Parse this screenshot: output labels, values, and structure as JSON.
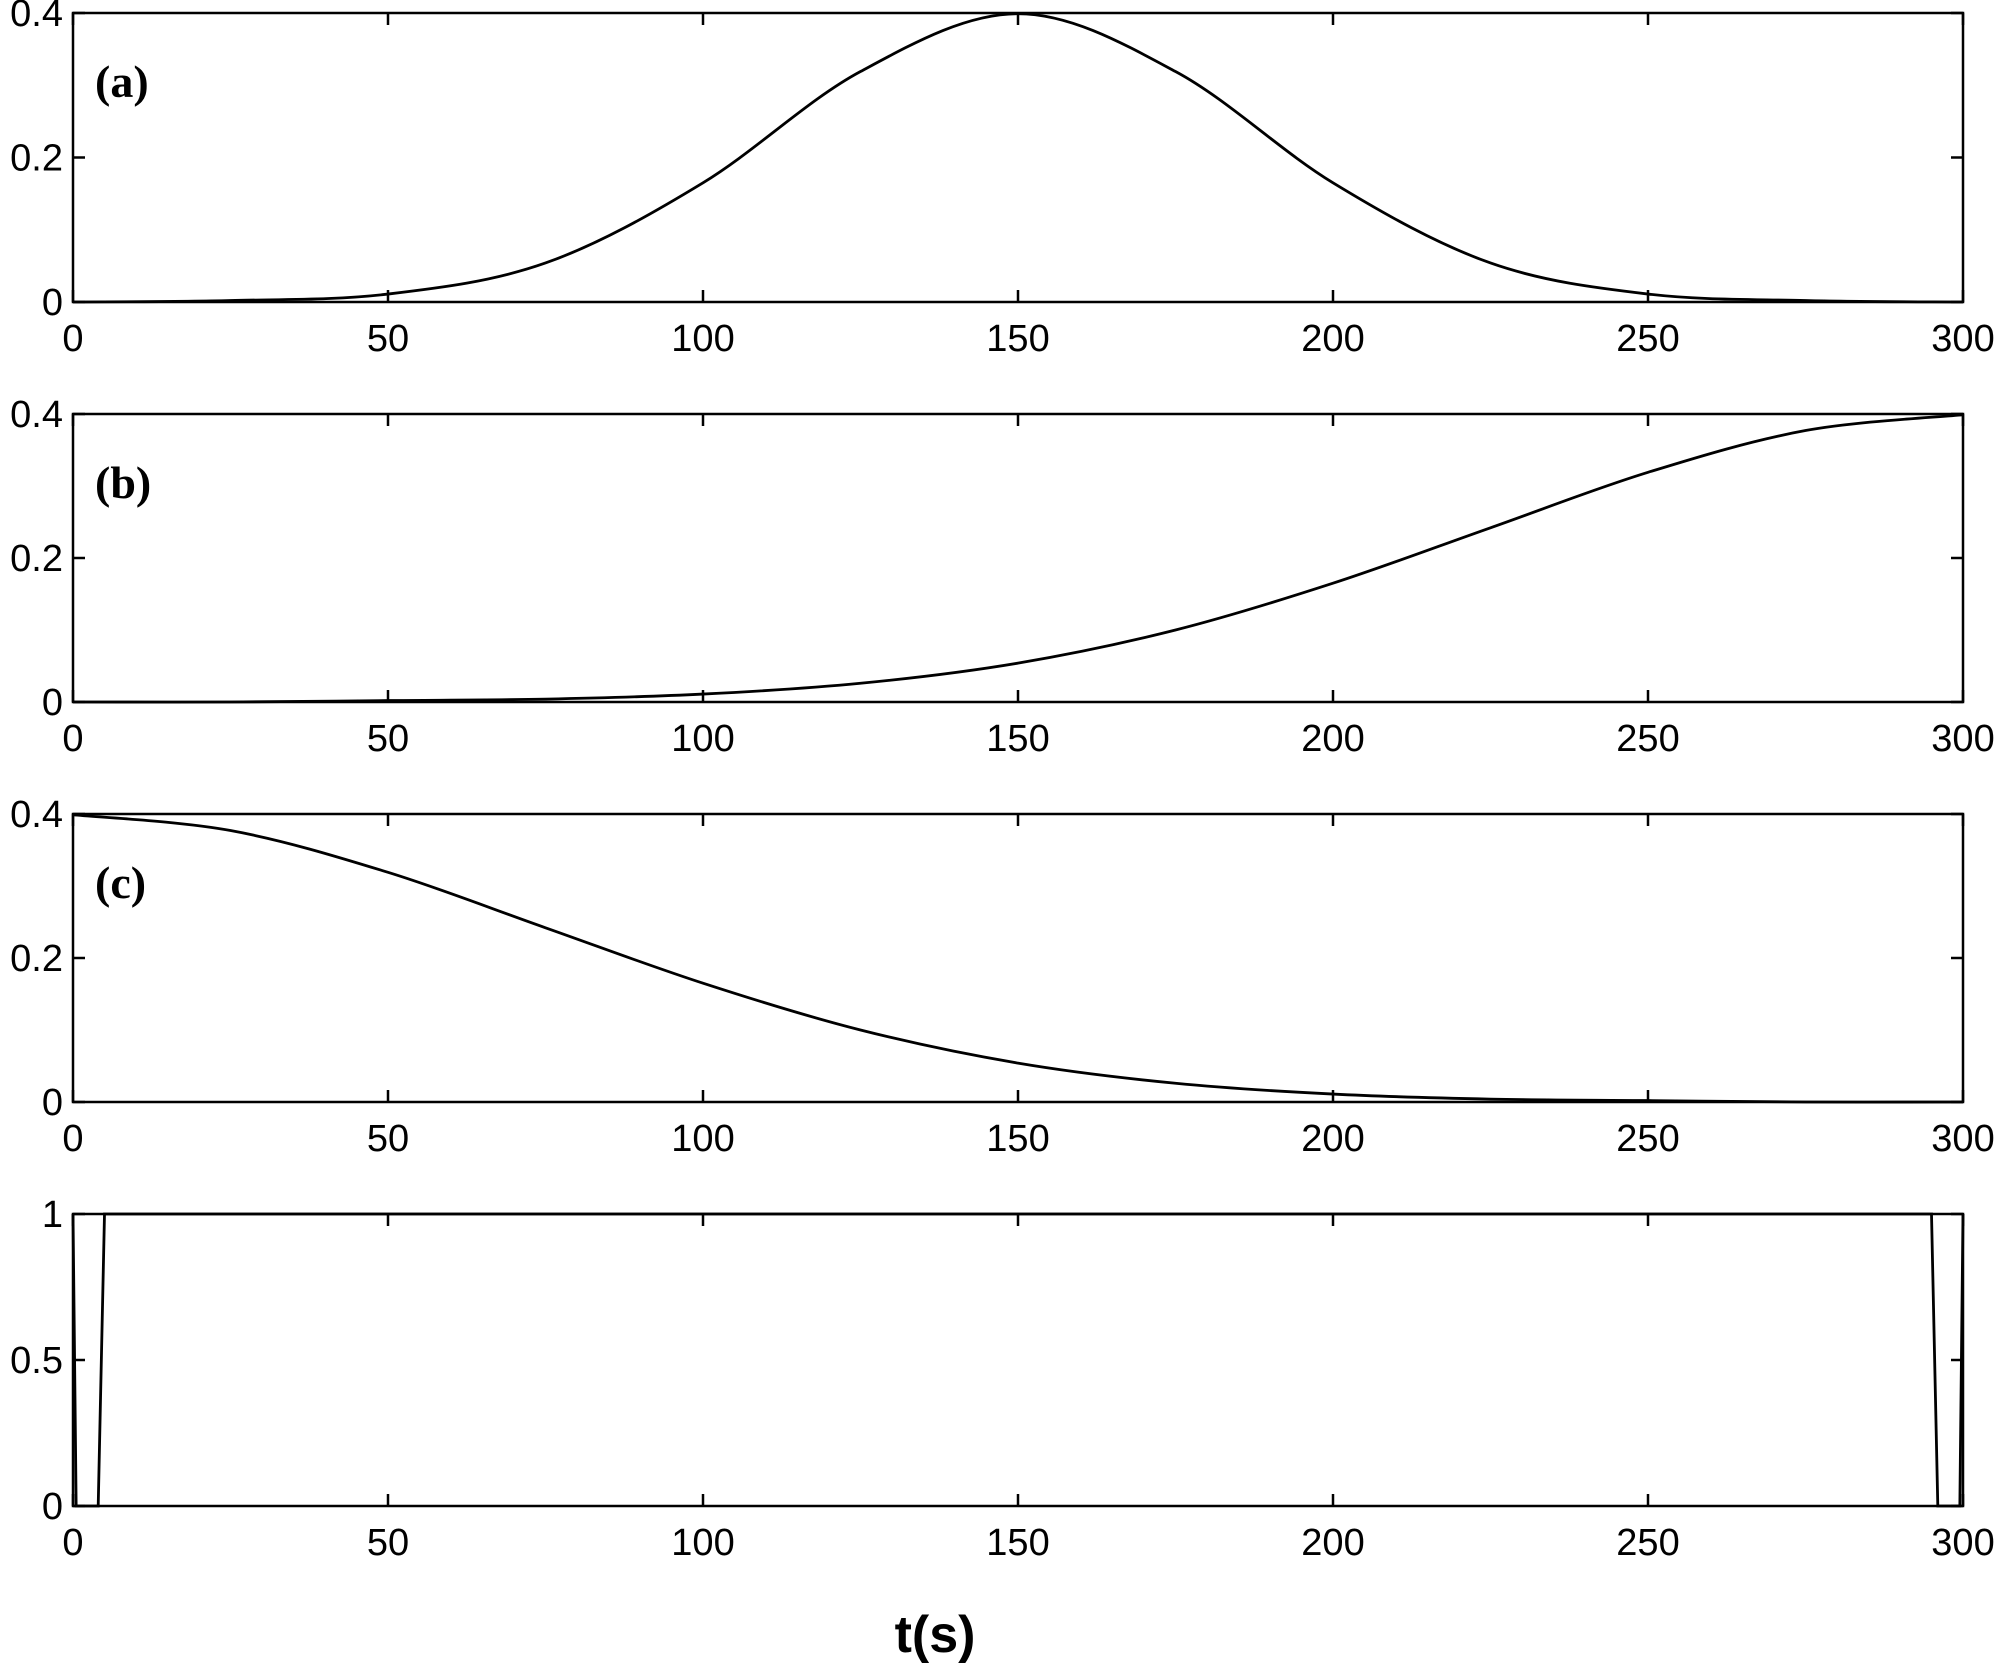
{
  "chart_data": [
    {
      "type": "line",
      "panel_label": "(a)",
      "xlim": [
        0,
        300
      ],
      "ylim": [
        0,
        0.4
      ],
      "xticks": [
        "0",
        "50",
        "100",
        "150",
        "200",
        "250",
        "300"
      ],
      "yticks": [
        "0",
        "0.2",
        "0.4"
      ],
      "series": [
        {
          "x": [
            0,
            25,
            50,
            75,
            100,
            125,
            150,
            175,
            200,
            225,
            250,
            275,
            300
          ],
          "y": [
            0.0,
            0.002,
            0.011,
            0.054,
            0.165,
            0.319,
            0.399,
            0.319,
            0.165,
            0.054,
            0.011,
            0.002,
            0.0
          ]
        }
      ]
    },
    {
      "type": "line",
      "panel_label": "(b)",
      "xlim": [
        0,
        300
      ],
      "ylim": [
        0,
        0.4
      ],
      "xticks": [
        "0",
        "50",
        "100",
        "150",
        "200",
        "250",
        "300"
      ],
      "yticks": [
        "0",
        "0.2",
        "0.4"
      ],
      "series": [
        {
          "x": [
            0,
            25,
            50,
            75,
            100,
            125,
            150,
            175,
            200,
            225,
            250,
            275,
            300
          ],
          "y": [
            0.0,
            0.0,
            0.002,
            0.004,
            0.011,
            0.026,
            0.054,
            0.1,
            0.165,
            0.242,
            0.319,
            0.377,
            0.399
          ]
        }
      ]
    },
    {
      "type": "line",
      "panel_label": "(c)",
      "xlim": [
        0,
        300
      ],
      "ylim": [
        0,
        0.4
      ],
      "xticks": [
        "0",
        "50",
        "100",
        "150",
        "200",
        "250",
        "300"
      ],
      "yticks": [
        "0",
        "0.2",
        "0.4"
      ],
      "series": [
        {
          "x": [
            0,
            25,
            50,
            75,
            100,
            125,
            150,
            175,
            200,
            225,
            250,
            275,
            300
          ],
          "y": [
            0.399,
            0.377,
            0.319,
            0.242,
            0.165,
            0.1,
            0.054,
            0.026,
            0.011,
            0.004,
            0.002,
            0.0,
            0.0
          ]
        }
      ]
    },
    {
      "type": "line",
      "panel_label": "",
      "xlim": [
        0,
        300
      ],
      "ylim": [
        0,
        1
      ],
      "xticks": [
        "0",
        "50",
        "100",
        "150",
        "200",
        "250",
        "300"
      ],
      "yticks": [
        "0",
        "0.5",
        "1"
      ],
      "series": [
        {
          "x": [
            0,
            0.5,
            4,
            5,
            295,
            296,
            299.5,
            300
          ],
          "y": [
            1,
            0,
            0,
            1,
            1,
            0,
            0,
            1
          ]
        }
      ]
    }
  ],
  "xlabel": "t(s)"
}
